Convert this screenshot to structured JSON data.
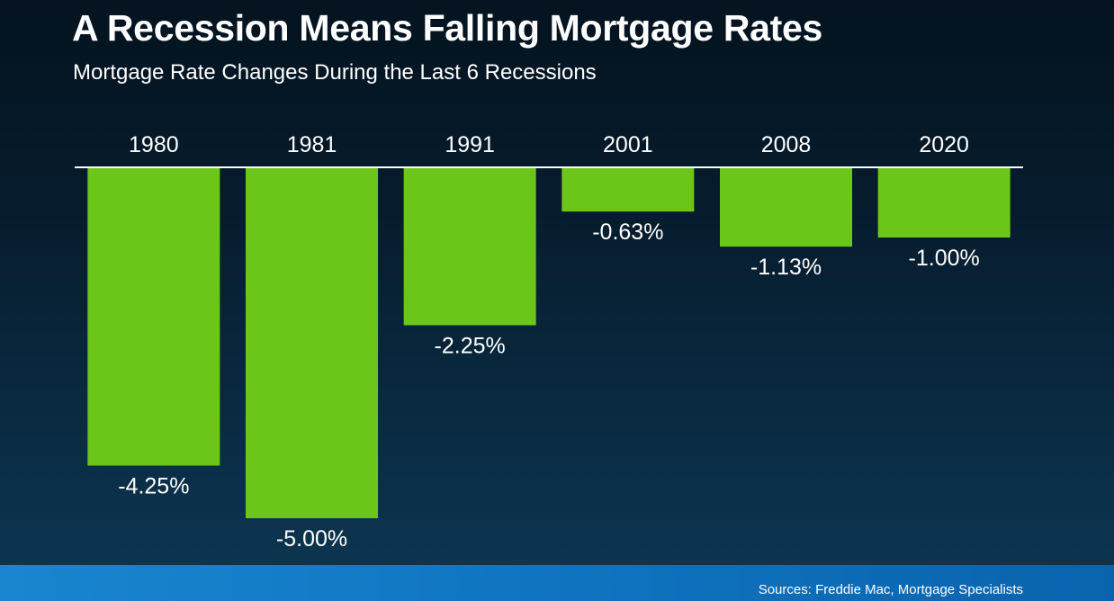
{
  "header": {
    "title": "A Recession Means Falling Mortgage Rates",
    "subtitle": "Mortgage Rate Changes During the Last 6 Recessions"
  },
  "footer": {
    "source": "Sources: Freddie Mac, Mortgage Specialists"
  },
  "colors": {
    "bar": "#6cc61a",
    "baseline": "#ffffff",
    "text": "#ffffff"
  },
  "chart_data": {
    "type": "bar",
    "categories": [
      "1980",
      "1981",
      "1991",
      "2001",
      "2008",
      "2020"
    ],
    "values": [
      -4.25,
      -5.0,
      -2.25,
      -0.63,
      -1.13,
      -1.0
    ],
    "value_labels": [
      "-4.25%",
      "-5.00%",
      "-2.25%",
      "-0.63%",
      "-1.13%",
      "-1.00%"
    ],
    "ylim": [
      -5.0,
      0
    ],
    "grid": false,
    "legend": "none"
  }
}
